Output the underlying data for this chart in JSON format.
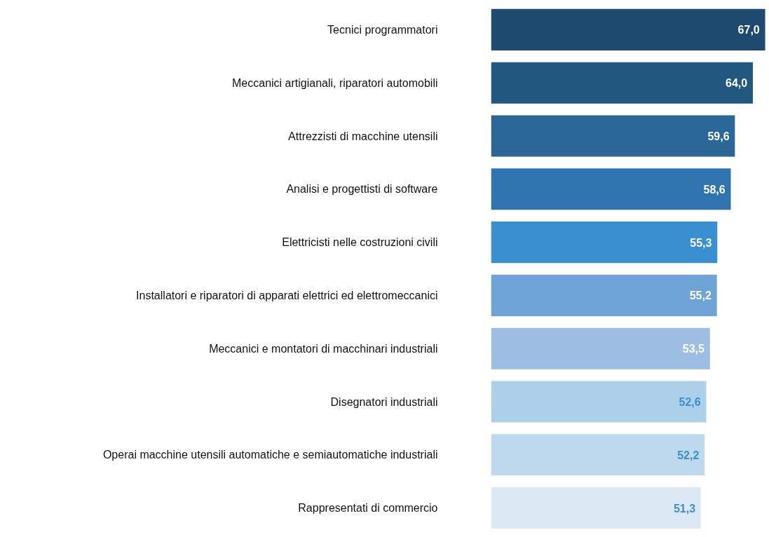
{
  "chart_data": {
    "type": "bar",
    "orientation": "horizontal",
    "grid": false,
    "value_labels": [
      "67,0",
      "64,0",
      "59,6",
      "58,6",
      "55,3",
      "55,2",
      "53,5",
      "52,6",
      "52,2",
      "51,3"
    ],
    "categories": [
      "Tecnici programmatori",
      "Meccanici artigianali, riparatori automobili",
      "Attrezzisti di macchine utensili",
      "Analisi e progettisti di software",
      "Elettricisti nelle costruzioni civili",
      "Installatori e riparatori di apparati elettrici ed elettromeccanici",
      "Meccanici e montatori di macchinari industriali",
      "Disegnatori industriali",
      "Operai macchine utensili automatiche e semiautomatiche industriali",
      "Rappresentati di commercio"
    ],
    "values": [
      67.0,
      64.0,
      59.6,
      58.6,
      55.3,
      55.2,
      53.5,
      52.6,
      52.2,
      51.3
    ],
    "colors": [
      "#1d4a6e",
      "#22587f",
      "#2a6796",
      "#2f74ae",
      "#3a8fd0",
      "#6ea3d8",
      "#9dbde3",
      "#add0ea",
      "#bed9ee",
      "#dce9f5"
    ]
  }
}
